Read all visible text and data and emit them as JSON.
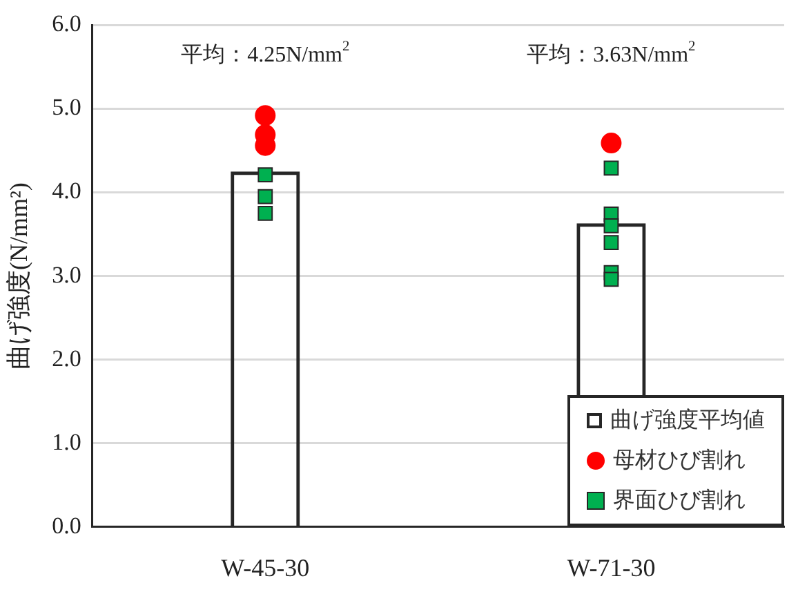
{
  "chart_data": {
    "type": "bar",
    "ylabel": "曲げ強度(N/mm²)",
    "categories": [
      "W-45-30",
      "W-71-30"
    ],
    "series": [
      {
        "name": "曲げ強度平均値",
        "color": "#262626",
        "values": [
          4.25,
          3.63
        ]
      },
      {
        "name": "母材ひび割れ",
        "type": "scatter",
        "color": "#ff0000",
        "marker": "circle",
        "x": [
          "W-45-30",
          "W-45-30",
          "W-45-30",
          "W-71-30"
        ],
        "values": [
          4.92,
          4.69,
          4.56,
          4.59
        ]
      },
      {
        "name": "界面ひび割れ",
        "type": "scatter",
        "color": "#00b050",
        "marker": "square",
        "x": [
          "W-45-30",
          "W-45-30",
          "W-45-30",
          "W-71-30",
          "W-71-30",
          "W-71-30",
          "W-71-30",
          "W-71-30",
          "W-71-30"
        ],
        "values": [
          4.21,
          3.95,
          3.75,
          4.29,
          3.74,
          3.6,
          3.4,
          3.04,
          2.96
        ]
      }
    ],
    "annotations": [
      "平均：4.25N/mm$^{2}$",
      "平均：3.63N/mm$^{2}$"
    ],
    "ylim": [
      0,
      6
    ],
    "yticks": [
      {
        "value": 0,
        "label": "0.0"
      },
      {
        "value": 1,
        "label": "1.0"
      },
      {
        "value": 2,
        "label": "2.0"
      },
      {
        "value": 3,
        "label": "3.0"
      },
      {
        "value": 4,
        "label": "4.0"
      },
      {
        "value": 5,
        "label": "5.0"
      },
      {
        "value": 6,
        "label": "6.0"
      }
    ],
    "grid": "y",
    "legend": "bottom right"
  }
}
